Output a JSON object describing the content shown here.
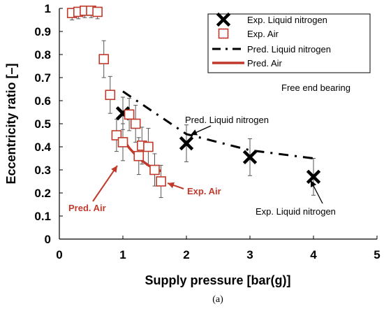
{
  "chart_data": {
    "type": "scatter",
    "xlabel": "Supply pressure [bar(g)]",
    "ylabel": "Eccentricity ratio [–]",
    "xlim": [
      0,
      5
    ],
    "ylim": [
      0,
      1
    ],
    "x_ticks": [
      "0",
      "1",
      "2",
      "3",
      "4",
      "5"
    ],
    "y_ticks": [
      "0",
      "0.1",
      "0.2",
      "0.3",
      "0.4",
      "0.5",
      "0.6",
      "0.7",
      "0.8",
      "0.9",
      "1"
    ],
    "grid": false,
    "legend_position": "top-right",
    "series": [
      {
        "name": "Exp. Liquid nitrogen",
        "marker": "x",
        "color": "#000000",
        "points": [
          {
            "x": 1.0,
            "y": 0.545,
            "err": 0.07
          },
          {
            "x": 2.0,
            "y": 0.415,
            "err": 0.08
          },
          {
            "x": 3.0,
            "y": 0.355,
            "err": 0.08
          },
          {
            "x": 4.0,
            "y": 0.27,
            "err": 0.08
          }
        ]
      },
      {
        "name": "Exp. Air",
        "marker": "open-square",
        "color": "#c0392b",
        "points": [
          {
            "x": 0.2,
            "y": 0.98,
            "err": 0.03
          },
          {
            "x": 0.3,
            "y": 0.985,
            "err": 0.03
          },
          {
            "x": 0.4,
            "y": 0.99,
            "err": 0.03
          },
          {
            "x": 0.5,
            "y": 0.99,
            "err": 0.03
          },
          {
            "x": 0.6,
            "y": 0.985,
            "err": 0.03
          },
          {
            "x": 0.7,
            "y": 0.78,
            "err": 0.08
          },
          {
            "x": 0.8,
            "y": 0.625,
            "err": 0.08
          },
          {
            "x": 0.9,
            "y": 0.45,
            "err": 0.07
          },
          {
            "x": 1.0,
            "y": 0.42,
            "err": 0.08
          },
          {
            "x": 1.1,
            "y": 0.54,
            "err": 0.07
          },
          {
            "x": 1.2,
            "y": 0.5,
            "err": 0.08
          },
          {
            "x": 1.25,
            "y": 0.36,
            "err": 0.08
          },
          {
            "x": 1.3,
            "y": 0.405,
            "err": 0.08
          },
          {
            "x": 1.4,
            "y": 0.4,
            "err": 0.08
          },
          {
            "x": 1.5,
            "y": 0.3,
            "err": 0.07
          },
          {
            "x": 1.6,
            "y": 0.25,
            "err": 0.07
          }
        ]
      },
      {
        "name": "Pred. Liquid nitrogen",
        "line": "dash-dot",
        "color": "#000000",
        "x": [
          1.0,
          2.0,
          3.0,
          4.0
        ],
        "y": [
          0.64,
          0.455,
          0.385,
          0.35
        ]
      },
      {
        "name": "Pred. Air",
        "line": "solid",
        "color": "#c0392b",
        "x": [
          1.0,
          1.1,
          1.2,
          1.3,
          1.4,
          1.5,
          1.6
        ],
        "y": [
          0.435,
          0.395,
          0.365,
          0.34,
          0.32,
          0.305,
          0.295
        ]
      }
    ],
    "annotations": [
      {
        "text": "Free end bearing",
        "color": "#000000"
      },
      {
        "text": "Pred. Liquid nitrogen",
        "color": "#000000"
      },
      {
        "text": "Exp. Liquid nitrogen",
        "color": "#000000"
      },
      {
        "text": "Exp. Air",
        "color": "#c0392b"
      },
      {
        "text": "Pred. Air",
        "color": "#c0392b"
      }
    ],
    "caption": "(a)"
  }
}
